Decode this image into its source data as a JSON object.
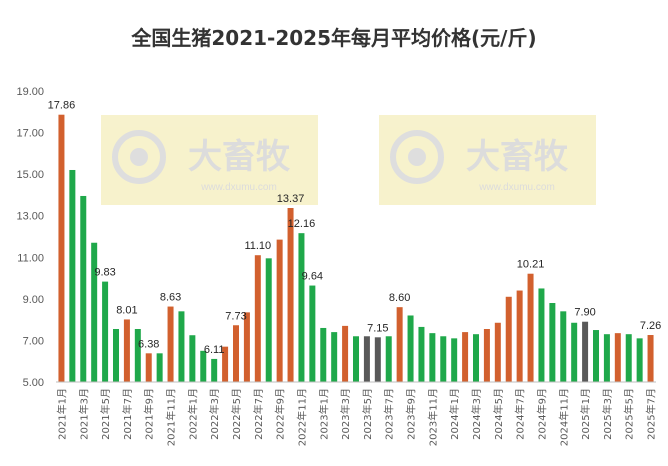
{
  "chart_data": {
    "type": "bar",
    "title": "全国生猪2021-2025年每月平均价格(元/斤)",
    "xlabel": "",
    "ylabel": "",
    "ylim": [
      5,
      19
    ],
    "yticks": [
      "5.00",
      "7.00",
      "9.00",
      "11.00",
      "13.00",
      "15.00",
      "17.00",
      "19.00"
    ],
    "grid": false,
    "legend": "none",
    "watermark": "大畜牧 www.dxumu.com",
    "colors": {
      "up": "#D2602E",
      "down": "#1FA84A",
      "flat": "#595959"
    },
    "categories": [
      "2021年1月",
      "2021年2月",
      "2021年3月",
      "2021年4月",
      "2021年5月",
      "2021年6月",
      "2021年7月",
      "2021年8月",
      "2021年9月",
      "2021年10月",
      "2021年11月",
      "2021年12月",
      "2022年1月",
      "2022年2月",
      "2022年3月",
      "2022年4月",
      "2022年5月",
      "2022年6月",
      "2022年7月",
      "2022年8月",
      "2022年9月",
      "2022年10月",
      "2022年11月",
      "2022年12月",
      "2023年1月",
      "2023年2月",
      "2023年3月",
      "2023年4月",
      "2023年5月",
      "2023年6月",
      "2023年7月",
      "2023年8月",
      "2023年9月",
      "2023年10月",
      "2023年11月",
      "2023年12月",
      "2024年1月",
      "2024年2月",
      "2024年3月",
      "2024年4月",
      "2024年5月",
      "2024年6月",
      "2024年7月",
      "2024年8月",
      "2024年9月",
      "2024年10月",
      "2024年11月",
      "2024年12月",
      "2025年1月",
      "2025年2月",
      "2025年3月",
      "2025年4月",
      "2025年5月",
      "2025年6月",
      "2025年7月"
    ],
    "tick_labels": [
      "2021年1月",
      "2021年3月",
      "2021年5月",
      "2021年7月",
      "2021年9月",
      "2021年11月",
      "2022年1月",
      "2022年3月",
      "2022年5月",
      "2022年7月",
      "2022年9月",
      "2022年11月",
      "2023年1月",
      "2023年3月",
      "2023年5月",
      "2023年7月",
      "2023年9月",
      "2023年11月",
      "2024年1月",
      "2024年3月",
      "2024年5月",
      "2024年7月",
      "2024年9月",
      "2024年11月",
      "2025年1月",
      "2025年3月",
      "2025年5月",
      "2025年7月"
    ],
    "values": [
      17.86,
      15.2,
      13.95,
      11.7,
      9.83,
      7.55,
      8.01,
      7.55,
      6.38,
      6.38,
      8.63,
      8.4,
      7.25,
      6.5,
      6.11,
      6.7,
      7.73,
      8.35,
      11.1,
      10.95,
      11.85,
      13.37,
      12.16,
      9.64,
      7.6,
      7.4,
      7.7,
      7.2,
      7.2,
      7.15,
      7.2,
      8.6,
      8.2,
      7.65,
      7.35,
      7.2,
      7.1,
      7.4,
      7.3,
      7.55,
      7.85,
      9.1,
      9.4,
      10.21,
      9.5,
      8.8,
      8.4,
      7.85,
      7.9,
      7.5,
      7.3,
      7.35,
      7.3,
      7.1,
      7.26
    ],
    "bar_colors": [
      "up",
      "down",
      "down",
      "down",
      "down",
      "down",
      "up",
      "down",
      "up",
      "down",
      "up",
      "down",
      "down",
      "down",
      "down",
      "up",
      "up",
      "up",
      "up",
      "down",
      "up",
      "up",
      "down",
      "down",
      "down",
      "down",
      "up",
      "down",
      "flat",
      "flat",
      "down",
      "up",
      "down",
      "down",
      "down",
      "down",
      "down",
      "up",
      "down",
      "up",
      "up",
      "up",
      "up",
      "up",
      "down",
      "down",
      "down",
      "down",
      "flat",
      "down",
      "down",
      "up",
      "down",
      "down",
      "up"
    ],
    "data_labels": [
      {
        "index": 0,
        "text": "17.86"
      },
      {
        "index": 4,
        "text": "9.83"
      },
      {
        "index": 6,
        "text": "8.01"
      },
      {
        "index": 8,
        "text": "6.38"
      },
      {
        "index": 10,
        "text": "8.63"
      },
      {
        "index": 14,
        "text": "6.11"
      },
      {
        "index": 16,
        "text": "7.73"
      },
      {
        "index": 18,
        "text": "11.10"
      },
      {
        "index": 21,
        "text": "13.37"
      },
      {
        "index": 22,
        "text": "12.16"
      },
      {
        "index": 23,
        "text": "9.64"
      },
      {
        "index": 29,
        "text": "7.15"
      },
      {
        "index": 31,
        "text": "8.60"
      },
      {
        "index": 43,
        "text": "10.21"
      },
      {
        "index": 48,
        "text": "7.90"
      },
      {
        "index": 54,
        "text": "7.26"
      }
    ]
  }
}
